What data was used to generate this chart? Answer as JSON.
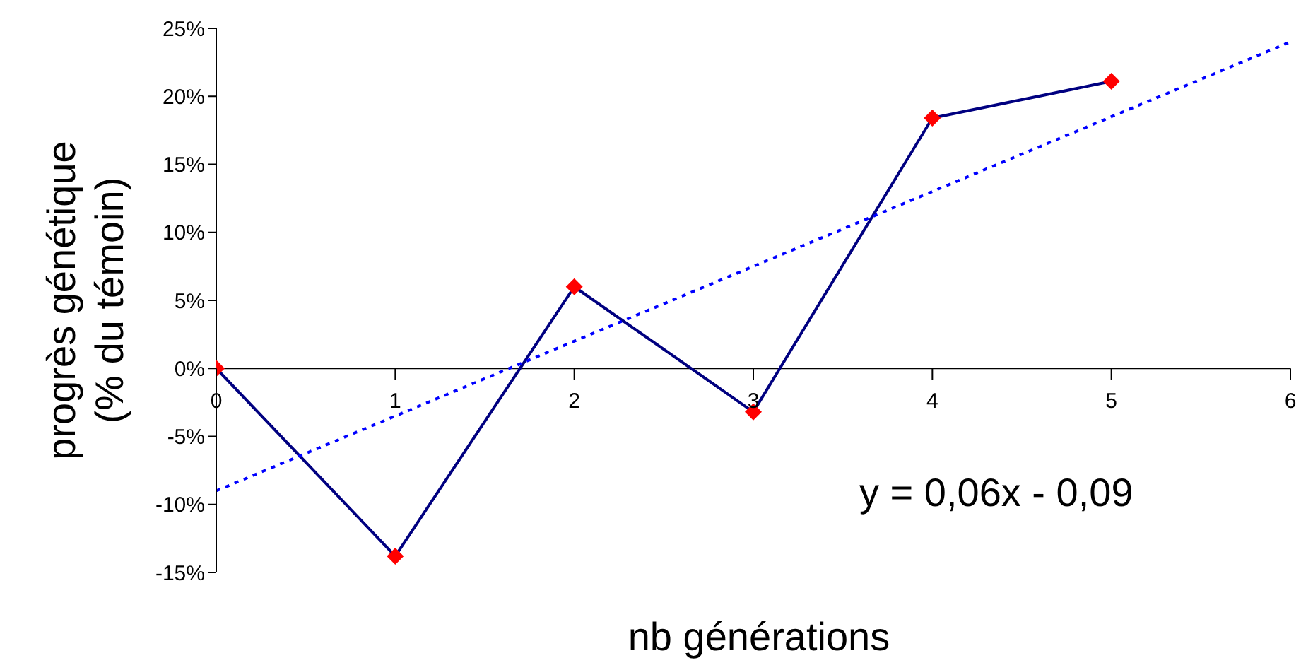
{
  "chart_data": {
    "type": "line",
    "xlabel": "nb générations",
    "ylabel": "progrès génétique\n(% du témoin)",
    "annotations": [
      "y = 0,06x - 0,09"
    ],
    "x": [
      0,
      1,
      2,
      3,
      4,
      5
    ],
    "series": [
      {
        "color": "#000080",
        "values": [
          0,
          -13.8,
          6,
          -3.2,
          18.4,
          21.1
        ],
        "marker": "diamond",
        "colors": [
          "#ff0000",
          "#ff0000",
          "#ff0000",
          "#ff0000",
          "#ff0000",
          "#ff0000"
        ],
        "line_style": "solid"
      },
      {
        "type": "line",
        "color": "#0000ff",
        "x": [
          0,
          6
        ],
        "values": [
          -9,
          24
        ],
        "marker": "none",
        "line_style": "dotted"
      }
    ],
    "xlim": [
      0,
      6
    ],
    "xticks": [
      0,
      1,
      2,
      3,
      4,
      5,
      6
    ],
    "ylim": [
      -15,
      25
    ],
    "yticks": [
      {
        "value": -15,
        "label": "-15%"
      },
      {
        "value": -10,
        "label": "-10%"
      },
      {
        "value": -5,
        "label": "-5%"
      },
      {
        "value": 0,
        "label": "0%"
      },
      {
        "value": 5,
        "label": "5%"
      },
      {
        "value": 10,
        "label": "10%"
      },
      {
        "value": 15,
        "label": "15%"
      },
      {
        "value": 20,
        "label": "20%"
      },
      {
        "value": 25,
        "label": "25%"
      }
    ],
    "grid": false,
    "legend": false
  }
}
